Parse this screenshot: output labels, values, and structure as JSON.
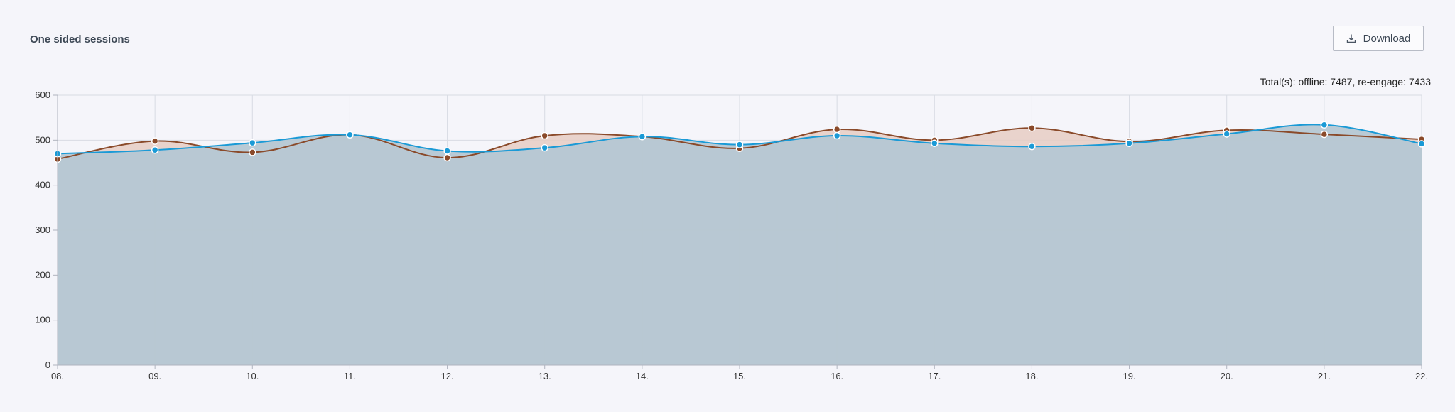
{
  "header": {
    "title": "One sided sessions",
    "download_label": "Download",
    "download_icon": "download-icon"
  },
  "totals": {
    "prefix": "Total(s): ",
    "offline_label": "offline: ",
    "offline_value": "7487",
    "separator": ", ",
    "reengage_label": "re-engage: ",
    "reengage_value": "7433"
  },
  "colors": {
    "offline_line": "#8a4a2a",
    "offline_fill": "#e6cdc3",
    "reengage_line": "#1a9ad6",
    "reengage_fill": "#b5c7d3",
    "grid": "#d8dbe3",
    "axis": "#b0b4bf"
  },
  "chart_data": {
    "type": "area",
    "categories": [
      "08.",
      "09.",
      "10.",
      "11.",
      "12.",
      "13.",
      "14.",
      "15.",
      "16.",
      "17.",
      "18.",
      "19.",
      "20.",
      "21.",
      "22."
    ],
    "series": [
      {
        "name": "offline",
        "values": [
          458,
          498,
          473,
          512,
          461,
          510,
          508,
          482,
          524,
          500,
          527,
          497,
          522,
          513,
          502
        ]
      },
      {
        "name": "re-engage",
        "values": [
          470,
          478,
          494,
          512,
          476,
          483,
          508,
          490,
          510,
          493,
          486,
          493,
          514,
          534,
          492
        ]
      }
    ],
    "ylim": [
      0,
      600
    ],
    "yticks": [
      "0",
      "100",
      "200",
      "300",
      "400",
      "500",
      "600"
    ],
    "grid": true
  }
}
